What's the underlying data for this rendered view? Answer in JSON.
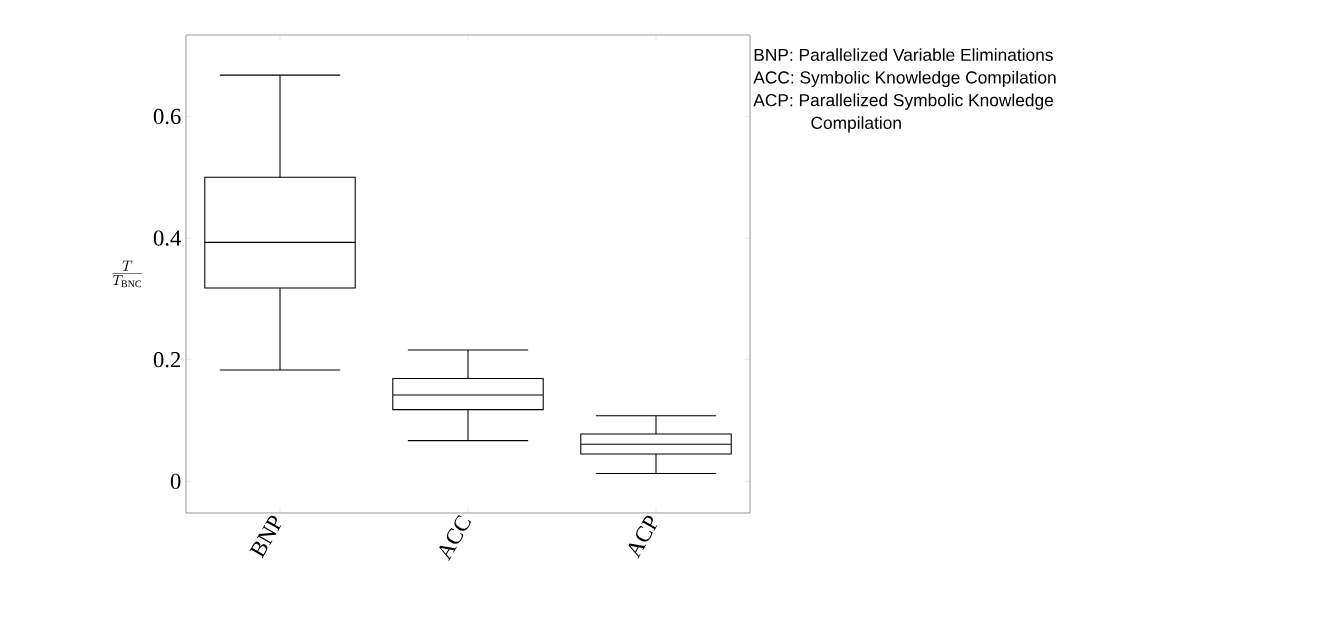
{
  "chart_data": {
    "type": "box",
    "ylabel": "\\frac{T}{T_{\\mathrm{BNC}}}",
    "categories": [
      "BNP",
      "ACC",
      "ACP"
    ],
    "boxes": [
      {
        "low": 0.183,
        "q1": 0.318,
        "median": 0.393,
        "q3": 0.5,
        "high": 0.668
      },
      {
        "low": 0.067,
        "q1": 0.118,
        "median": 0.142,
        "q3": 0.169,
        "high": 0.216
      },
      {
        "low": 0.013,
        "q1": 0.045,
        "median": 0.061,
        "q3": 0.078,
        "high": 0.108
      }
    ],
    "color": "#000000",
    "ylim": [
      -0.052,
      0.734
    ],
    "yticks": [
      0,
      0.2,
      0.4,
      0.6
    ],
    "annotations": [
      "BNP: Parallelized Variable Eliminations",
      "ACC: Symbolic Knowledge Compilation",
      "ACP: Parallelized Symbolic Knowledge Compilation"
    ]
  }
}
